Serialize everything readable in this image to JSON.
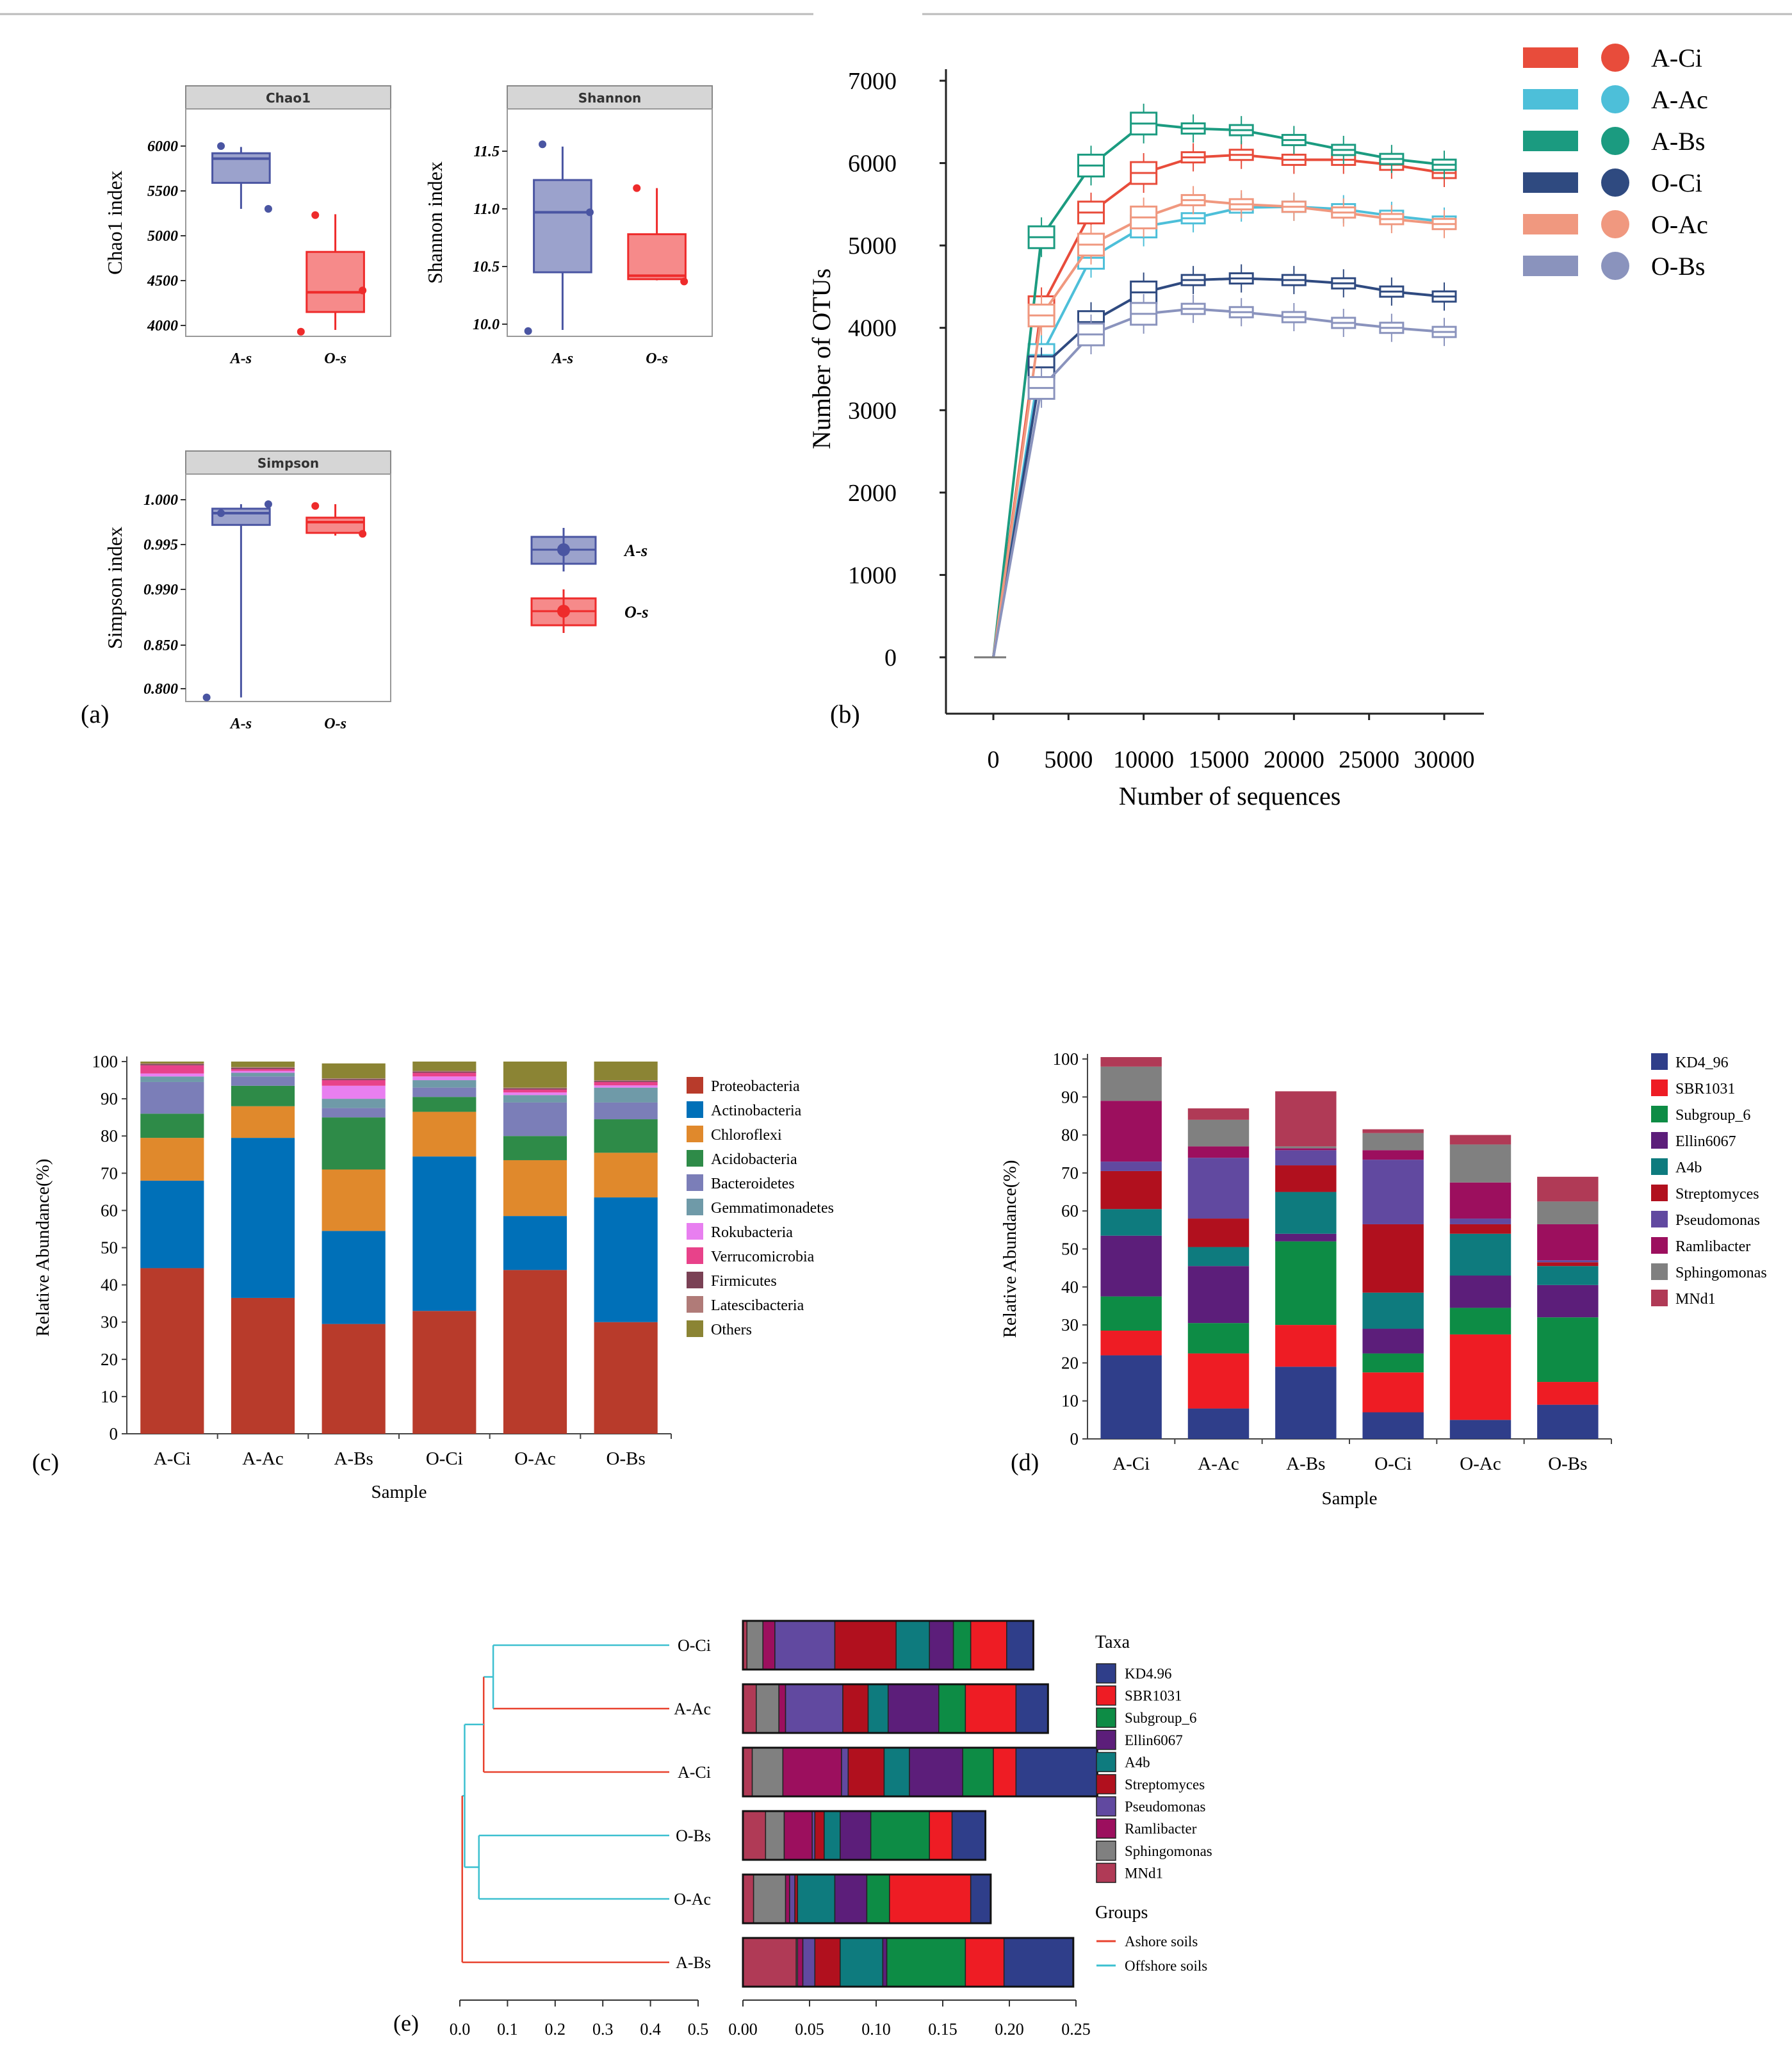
{
  "chart_data": [
    {
      "panel": "a-chao1",
      "panel_label": "(a)",
      "type": "box",
      "title": "Chao1",
      "ylabel": "Chao1 index",
      "categories": [
        "A-s",
        "O-s"
      ],
      "ylim": [
        3900,
        6200
      ],
      "yticks": [
        "6000",
        "5500",
        "5000",
        "4500",
        "4000"
      ],
      "boxes": [
        {
          "name": "A-s",
          "min": 5300,
          "q1": 5590,
          "median": 5860,
          "q3": 5920,
          "max": 5990,
          "points": [
            6000,
            5300
          ]
        },
        {
          "name": "O-s",
          "min": 3950,
          "q1": 4150,
          "median": 4370,
          "q3": 4820,
          "max": 5240,
          "points": [
            5230,
            4390,
            3930
          ]
        }
      ]
    },
    {
      "panel": "a-shannon",
      "type": "box",
      "title": "Shannon",
      "ylabel": "Shannon index",
      "categories": [
        "A-s",
        "O-s"
      ],
      "ylim": [
        9.9,
        11.7
      ],
      "yticks": [
        "11.5",
        "11.0",
        "10.5",
        "10.0"
      ],
      "boxes": [
        {
          "name": "A-s",
          "min": 9.95,
          "q1": 10.45,
          "median": 10.97,
          "q3": 11.25,
          "max": 11.54,
          "points": [
            11.56,
            10.97,
            9.94
          ]
        },
        {
          "name": "O-s",
          "min": 10.38,
          "q1": 10.39,
          "median": 10.42,
          "q3": 10.78,
          "max": 11.18,
          "points": [
            11.18,
            10.37
          ]
        }
      ]
    },
    {
      "panel": "a-simpson",
      "type": "box",
      "title": "Simpson",
      "ylabel": "Simpson index",
      "categories": [
        "A-s",
        "O-s"
      ],
      "yticks": [
        "1.000",
        "0.995",
        "0.990",
        "0.850",
        "0.800"
      ],
      "boxes": [
        {
          "name": "A-s",
          "min": 0.79,
          "q1": 0.988,
          "median": 0.9985,
          "q3": 0.999,
          "max": 0.9995,
          "points": [
            0.9985,
            0.9995,
            0.79
          ]
        },
        {
          "name": "O-s",
          "min": 0.996,
          "q1": 0.9963,
          "median": 0.9975,
          "q3": 0.998,
          "max": 0.9995,
          "points": [
            0.9993,
            0.9962
          ]
        }
      ],
      "legend": [
        {
          "name": "A-s",
          "color": "#4a55a2"
        },
        {
          "name": "O-s",
          "color": "#ee2b2b"
        }
      ]
    },
    {
      "panel": "b",
      "panel_label": "(b)",
      "type": "line",
      "xlabel": "Number of sequences",
      "ylabel": "Number of OTUs",
      "xlim": [
        -3000,
        32000
      ],
      "ylim": [
        0,
        7000
      ],
      "xticks": [
        "0",
        "5000",
        "10000",
        "15000",
        "20000",
        "25000",
        "30000"
      ],
      "yticks": [
        "0",
        "1000",
        "2000",
        "3000",
        "4000",
        "5000",
        "6000",
        "7000"
      ],
      "x": [
        0,
        3200,
        6500,
        10000,
        13300,
        16500,
        20000,
        23300,
        26500,
        30000
      ],
      "series": [
        {
          "name": "A-Ci",
          "color": "#e84c3b",
          "values": [
            0,
            4250,
            5400,
            5880,
            6070,
            6100,
            6040,
            6040,
            5980,
            5880
          ]
        },
        {
          "name": "A-Ac",
          "color": "#4dbfd9",
          "values": [
            0,
            3670,
            4850,
            5230,
            5330,
            5460,
            5470,
            5440,
            5360,
            5290
          ]
        },
        {
          "name": "A-Bs",
          "color": "#1b9b80",
          "values": [
            0,
            5100,
            5970,
            6480,
            6420,
            6400,
            6280,
            6160,
            6050,
            5980
          ]
        },
        {
          "name": "O-Ci",
          "color": "#2f4a80",
          "values": [
            0,
            3520,
            4070,
            4430,
            4580,
            4600,
            4580,
            4540,
            4440,
            4380
          ]
        },
        {
          "name": "O-Ac",
          "color": "#f0987f",
          "values": [
            0,
            4150,
            5010,
            5340,
            5550,
            5500,
            5470,
            5400,
            5320,
            5260
          ]
        },
        {
          "name": "O-Bs",
          "color": "#8a93bd",
          "values": [
            0,
            3270,
            3920,
            4170,
            4230,
            4190,
            4130,
            4060,
            4000,
            3950
          ]
        }
      ]
    },
    {
      "panel": "c",
      "panel_label": "(c)",
      "type": "bar",
      "stacked": true,
      "xlabel": "Sample",
      "ylabel": "Relative Abundance(%)",
      "ylim": [
        0,
        100
      ],
      "yticks": [
        "0",
        "10",
        "20",
        "30",
        "40",
        "50",
        "60",
        "70",
        "80",
        "90",
        "100"
      ],
      "categories": [
        "A-Ci",
        "A-Ac",
        "A-Bs",
        "O-Ci",
        "O-Ac",
        "O-Bs"
      ],
      "series": [
        {
          "name": "Proteobacteria",
          "color": "#b83b2b",
          "values": [
            44.5,
            36.5,
            29.5,
            33,
            44,
            30
          ]
        },
        {
          "name": "Actinobacteria",
          "color": "#0070b8",
          "values": [
            23.5,
            43,
            25,
            41.5,
            14.5,
            33.5
          ]
        },
        {
          "name": "Chloroflexi",
          "color": "#e0892c",
          "values": [
            11.5,
            8.5,
            16.5,
            12,
            15,
            12
          ]
        },
        {
          "name": "Acidobacteria",
          "color": "#2e8b48",
          "values": [
            6.5,
            5.5,
            14,
            4,
            6.5,
            9
          ]
        },
        {
          "name": "Bacteroidetes",
          "color": "#7b7eb8",
          "values": [
            8.5,
            2.5,
            2.5,
            2.5,
            9,
            4.5
          ]
        },
        {
          "name": "Gemmatimonadetes",
          "color": "#6f9aa8",
          "values": [
            1.5,
            1,
            2.5,
            2,
            2,
            4
          ]
        },
        {
          "name": "Rokubacteria",
          "color": "#e87ff0",
          "values": [
            0.8,
            0.5,
            3.5,
            1,
            0.7,
            0.6
          ]
        },
        {
          "name": "Verrucomicrobia",
          "color": "#e8428a",
          "values": [
            2.2,
            0.5,
            1.5,
            1,
            0.8,
            0.9
          ]
        },
        {
          "name": "Firmicutes",
          "color": "#7a4155",
          "values": [
            0.3,
            0.3,
            0.3,
            0.3,
            0.3,
            0.3
          ]
        },
        {
          "name": "Latescibacteria",
          "color": "#b07b78",
          "values": [
            0.2,
            0.2,
            0.2,
            0.2,
            0.2,
            0.2
          ]
        },
        {
          "name": "Others",
          "color": "#8b8434",
          "values": [
            0.5,
            1.5,
            4,
            2.5,
            7,
            5
          ]
        }
      ]
    },
    {
      "panel": "d",
      "panel_label": "(d)",
      "type": "bar",
      "stacked": true,
      "xlabel": "Sample",
      "ylabel": "Relative Abundance(%)",
      "ylim": [
        0,
        100
      ],
      "yticks": [
        "0",
        "10",
        "20",
        "30",
        "40",
        "50",
        "60",
        "70",
        "80",
        "90",
        "100"
      ],
      "categories": [
        "A-Ci",
        "A-Ac",
        "A-Bs",
        "O-Ci",
        "O-Ac",
        "O-Bs"
      ],
      "series": [
        {
          "name": "KD4_96",
          "color": "#2f3e8a",
          "values": [
            22,
            8,
            19,
            7,
            5,
            9
          ]
        },
        {
          "name": "SBR1031",
          "color": "#ee1c24",
          "values": [
            6.5,
            14.5,
            11,
            10.5,
            22.5,
            6
          ]
        },
        {
          "name": "Subgroup_6",
          "color": "#0d8c45",
          "values": [
            9,
            8,
            22,
            5,
            7,
            17
          ]
        },
        {
          "name": "Ellin6067",
          "color": "#5c1e7a",
          "values": [
            16,
            15,
            2,
            6.5,
            8.5,
            8.5
          ]
        },
        {
          "name": "A4b",
          "color": "#0e7b7e",
          "values": [
            7,
            5,
            11,
            9.5,
            11,
            5
          ]
        },
        {
          "name": "Streptomyces",
          "color": "#b1101e",
          "values": [
            10,
            7.5,
            7,
            18,
            2.5,
            1
          ]
        },
        {
          "name": "Pseudomonas",
          "color": "#6149a0",
          "values": [
            2.5,
            16,
            4,
            17,
            1.5,
            0.5
          ]
        },
        {
          "name": "Ramlibacter",
          "color": "#9c0f5e",
          "values": [
            16,
            3,
            0.5,
            2.5,
            9.5,
            9.5
          ]
        },
        {
          "name": "Sphingomonas",
          "color": "#808080",
          "values": [
            9,
            7,
            0.5,
            4.5,
            10,
            6
          ]
        },
        {
          "name": "MNd1",
          "color": "#b03a56",
          "values": [
            2.5,
            3,
            14.5,
            1,
            2.5,
            6.5
          ]
        }
      ]
    },
    {
      "panel": "e",
      "panel_label": "(e)",
      "type": "bar",
      "stacked": true,
      "orientation": "horizontal",
      "xticks_tree": [
        "0.0",
        "0.1",
        "0.2",
        "0.3",
        "0.4",
        "0.5"
      ],
      "xticks_bar": [
        "0.00",
        "0.05",
        "0.10",
        "0.15",
        "0.20",
        "0.25"
      ],
      "xlim": [
        0,
        0.27
      ],
      "categories": [
        "O-Ci",
        "A-Ac",
        "A-Ci",
        "O-Bs",
        "O-Ac",
        "A-Bs"
      ],
      "legend_title": "Taxa",
      "groups_title": "Groups",
      "groups": [
        {
          "name": "Ashore soils",
          "color": "#e8422e"
        },
        {
          "name": "Offshore soils",
          "color": "#3cc0d0"
        }
      ],
      "sample_group": [
        "Offshore soils",
        "Ashore soils",
        "Ashore soils",
        "Offshore soils",
        "Offshore soils",
        "Ashore soils"
      ],
      "series": [
        {
          "name": "KD4.96",
          "color": "#2f3e8a",
          "values": [
            0.02,
            0.024,
            0.061,
            0.025,
            0.015,
            0.052
          ]
        },
        {
          "name": "SBR1031",
          "color": "#ee1c24",
          "values": [
            0.027,
            0.038,
            0.017,
            0.017,
            0.061,
            0.029
          ]
        },
        {
          "name": "Subgroup_6",
          "color": "#0d8c45",
          "values": [
            0.013,
            0.02,
            0.023,
            0.044,
            0.017,
            0.059
          ]
        },
        {
          "name": "Ellin6067",
          "color": "#5c1e7a",
          "values": [
            0.018,
            0.038,
            0.04,
            0.023,
            0.024,
            0.003
          ]
        },
        {
          "name": "A4b",
          "color": "#0e7b7e",
          "values": [
            0.025,
            0.015,
            0.019,
            0.012,
            0.028,
            0.032
          ]
        },
        {
          "name": "Streptomyces",
          "color": "#b1101e",
          "values": [
            0.046,
            0.019,
            0.027,
            0.007,
            0.002,
            0.019
          ]
        },
        {
          "name": "Pseudomonas",
          "color": "#6149a0",
          "values": [
            0.045,
            0.043,
            0.005,
            0.002,
            0.004,
            0.009
          ]
        },
        {
          "name": "Ramlibacter",
          "color": "#9c0f5e",
          "values": [
            0.009,
            0.005,
            0.044,
            0.021,
            0.003,
            0.004
          ]
        },
        {
          "name": "Sphingomonas",
          "color": "#808080",
          "values": [
            0.012,
            0.017,
            0.023,
            0.014,
            0.024,
            0.001
          ]
        },
        {
          "name": "MNd1",
          "color": "#b03a56",
          "values": [
            0.003,
            0.01,
            0.007,
            0.017,
            0.008,
            0.04
          ]
        }
      ]
    }
  ]
}
